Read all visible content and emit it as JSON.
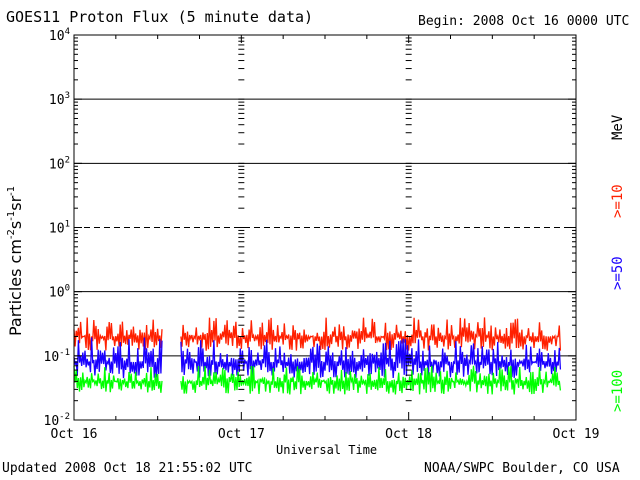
{
  "header": {
    "title": "GOES11 Proton Flux (5 minute data)",
    "begin": "Begin: 2008 Oct 16 0000 UTC"
  },
  "footer": {
    "updated": "Updated 2008 Oct 18 21:55:02 UTC",
    "credit": "NOAA/SWPC Boulder, CO USA"
  },
  "chart_data": {
    "type": "line",
    "title": "GOES11 Proton Flux (5 minute data)",
    "xlabel": "Universal Time",
    "ylabel_parts": [
      "Particles cm",
      "-2",
      "s",
      "-1",
      "sr",
      "-1"
    ],
    "y_scale": "log",
    "ylim": [
      0.01,
      10000
    ],
    "y_ticks": [
      {
        "base": "10",
        "exp": "-2",
        "value": 0.01
      },
      {
        "base": "10",
        "exp": "-1",
        "value": 0.1
      },
      {
        "base": "10",
        "exp": "0",
        "value": 1
      },
      {
        "base": "10",
        "exp": "1",
        "value": 10
      },
      {
        "base": "10",
        "exp": "2",
        "value": 100
      },
      {
        "base": "10",
        "exp": "3",
        "value": 1000
      },
      {
        "base": "10",
        "exp": "4",
        "value": 10000
      }
    ],
    "x_ticks": [
      {
        "label": "Oct 16",
        "day": 0
      },
      {
        "label": "Oct 17",
        "day": 1
      },
      {
        "label": "Oct 18",
        "day": 2
      },
      {
        "label": "Oct 19",
        "day": 3
      }
    ],
    "xlim": [
      "2008-10-16 00:00",
      "2008-10-19 00:00"
    ],
    "grid_y": [
      0.1,
      1,
      10,
      100,
      1000
    ],
    "dashed_y": [
      10
    ],
    "legend_unit": "MeV",
    "series": [
      {
        "name": ">=10",
        "color": "#ff2000",
        "base": 0.2,
        "low": 0.12,
        "high": 0.4,
        "segments": [
          [
            "2008-10-16 00:00",
            "2008-10-16 12:40"
          ],
          [
            "2008-10-16 15:20",
            "2008-10-18 21:50"
          ]
        ]
      },
      {
        "name": ">=50",
        "color": "#1a00ff",
        "base": 0.08,
        "low": 0.045,
        "high": 0.2,
        "segments": [
          [
            "2008-10-16 00:00",
            "2008-10-16 12:40"
          ],
          [
            "2008-10-16 15:20",
            "2008-10-18 21:50"
          ]
        ]
      },
      {
        "name": ">=100",
        "color": "#00ff00",
        "base": 0.04,
        "low": 0.025,
        "high": 0.07,
        "segments": [
          [
            "2008-10-16 00:00",
            "2008-10-16 12:40"
          ],
          [
            "2008-10-16 15:20",
            "2008-10-18 21:50"
          ]
        ]
      }
    ]
  }
}
